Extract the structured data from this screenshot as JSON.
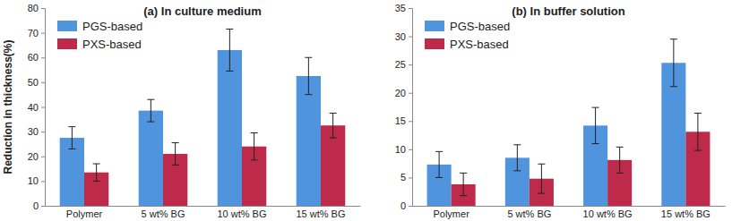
{
  "chart_data": [
    {
      "type": "bar",
      "title": "(a) In culture medium",
      "y_label": "Reduction in thickness(%)",
      "categories": [
        "Polymer",
        "5 wt% BG",
        "10 wt% BG",
        "15 wt% BG"
      ],
      "series": [
        {
          "name": "PGS-based",
          "color": "#4f94dc",
          "values": [
            27.5,
            38.5,
            63,
            52.5
          ],
          "errors": [
            4.5,
            4.5,
            8.5,
            7.5
          ]
        },
        {
          "name": "PXS-based",
          "color": "#be2a4a",
          "values": [
            13.5,
            21,
            24,
            32.5
          ],
          "errors": [
            3.5,
            4.5,
            5.5,
            5
          ]
        }
      ],
      "ylim": [
        0,
        80
      ],
      "yticks": [
        0,
        10,
        20,
        30,
        40,
        50,
        60,
        70,
        80
      ],
      "grid": false,
      "legend": "upper left"
    },
    {
      "type": "bar",
      "title": "(b) In buffer solution",
      "categories": [
        "Polymer",
        "5 wt% BG",
        "10 wt% BG",
        "15 wt% BG"
      ],
      "series": [
        {
          "name": "PGS-based",
          "color": "#4f94dc",
          "values": [
            7.3,
            8.5,
            14.2,
            25.3
          ],
          "errors": [
            2.3,
            2.3,
            3.2,
            4.2
          ]
        },
        {
          "name": "PXS-based",
          "color": "#be2a4a",
          "values": [
            3.8,
            4.8,
            8.1,
            13.1
          ],
          "errors": [
            2,
            2.6,
            2.3,
            3.3
          ]
        }
      ],
      "ylim": [
        0,
        35
      ],
      "yticks": [
        0,
        5,
        10,
        15,
        20,
        25,
        30,
        35
      ],
      "grid": false,
      "legend": "upper left"
    }
  ]
}
